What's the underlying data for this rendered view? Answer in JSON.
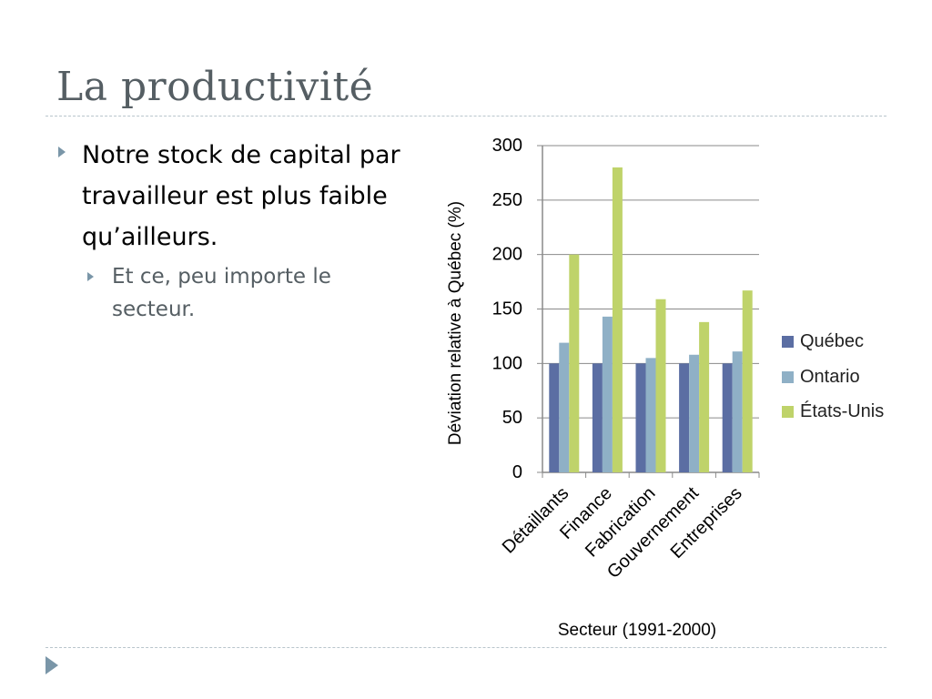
{
  "slide": {
    "title": "La productivité",
    "bullets": [
      {
        "text": "Notre stock de capital par travailleur est plus faible qu’ailleurs."
      },
      {
        "text": "Et ce, peu importe le secteur."
      }
    ]
  },
  "colors": {
    "Québec": "#5b6ea3",
    "Ontario": "#8fb0c6",
    "États-Unis": "#bfd36a",
    "title": "#555e63",
    "accent": "#7a96a8"
  },
  "chart_data": {
    "type": "bar",
    "categories": [
      "Détaillants",
      "Finance",
      "Fabrication",
      "Gouvernement",
      "Entreprises"
    ],
    "series": [
      {
        "name": "Québec",
        "values": [
          100,
          100,
          100,
          100,
          100
        ]
      },
      {
        "name": "Ontario",
        "values": [
          119,
          143,
          105,
          108,
          111
        ]
      },
      {
        "name": "États-Unis",
        "values": [
          200,
          280,
          159,
          138,
          167
        ]
      }
    ],
    "xlabel": "Secteur (1991-2000)",
    "ylabel": "Déviation relative à Québec (%)",
    "ylim": [
      0,
      300
    ],
    "yticks": [
      0,
      50,
      100,
      150,
      200,
      250,
      300
    ],
    "grid": true,
    "legend": "right"
  }
}
